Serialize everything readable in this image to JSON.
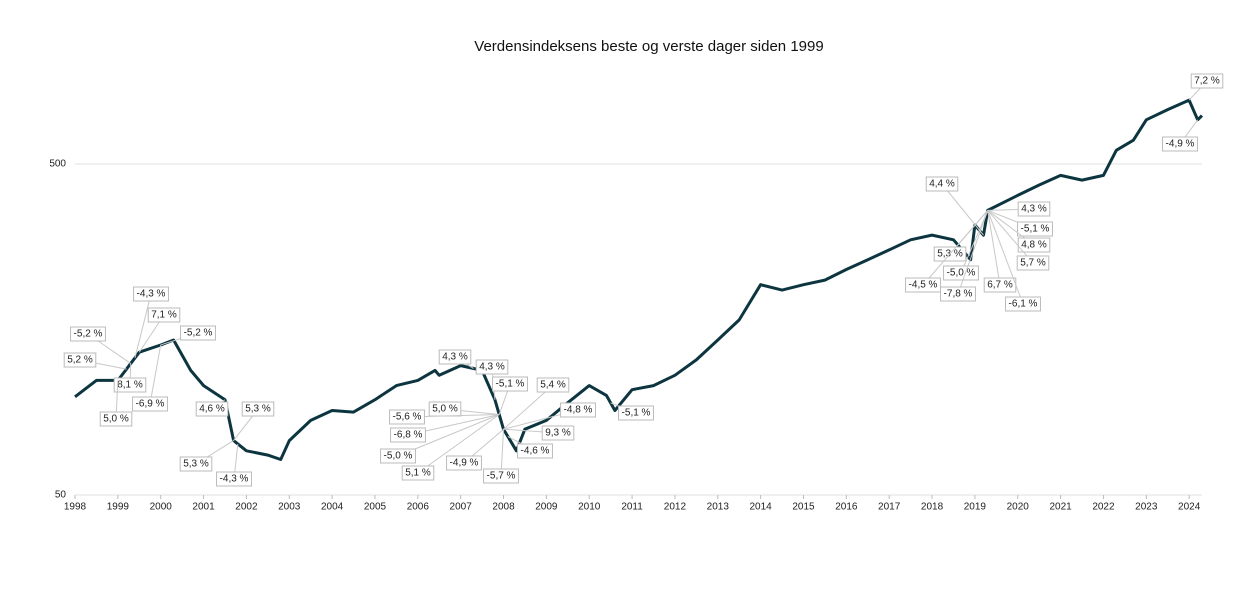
{
  "chart_data": {
    "type": "line",
    "title": "Verdensindeksens beste og verste dager siden 1999",
    "log_scale": true,
    "grid": true,
    "xlim": [
      1998,
      2024.3
    ],
    "xticks": [
      1998,
      1999,
      2000,
      2001,
      2002,
      2003,
      2004,
      2005,
      2006,
      2007,
      2008,
      2009,
      2010,
      2011,
      2012,
      2013,
      2014,
      2015,
      2016,
      2017,
      2018,
      2019,
      2020,
      2021,
      2022,
      2023,
      2024
    ],
    "ylim": [
      50,
      1000
    ],
    "yticks": [
      50,
      500
    ],
    "x": [
      1998,
      1998.5,
      1999,
      1999.5,
      2000,
      2000.3,
      2000.7,
      2001,
      2001.5,
      2001.7,
      2002,
      2002.5,
      2002.8,
      2003,
      2003.5,
      2004,
      2004.5,
      2005,
      2005.5,
      2006,
      2006.4,
      2006.5,
      2007,
      2007.5,
      2007.8,
      2008,
      2008.3,
      2008.5,
      2009,
      2009.5,
      2010,
      2010.4,
      2010.6,
      2011,
      2011.5,
      2012,
      2012.5,
      2013,
      2013.5,
      2014,
      2014.5,
      2015,
      2015.5,
      2016,
      2016.5,
      2017,
      2017.5,
      2018,
      2018.5,
      2018.9,
      2019,
      2019.2,
      2019.3,
      2020,
      2020.5,
      2021,
      2021.5,
      2022,
      2022.3,
      2022.7,
      2023,
      2023.5,
      2024,
      2024.2,
      2024.3
    ],
    "series": [
      {
        "name": "Verdensindeksen",
        "color": "#0d3540",
        "values": [
          99,
          111,
          111,
          135,
          142,
          147,
          119,
          107,
          97,
          73,
          68,
          66,
          64,
          73,
          84,
          90,
          89,
          97,
          107,
          111,
          119,
          115,
          123,
          119,
          97,
          79,
          68,
          79,
          84,
          95,
          107,
          100,
          90,
          104,
          107,
          115,
          128,
          147,
          169,
          216,
          208,
          216,
          223,
          240,
          257,
          275,
          295,
          305,
          295,
          257,
          327,
          305,
          362,
          402,
          432,
          462,
          447,
          462,
          550,
          590,
          680,
          730,
          780,
          680,
          700
        ]
      }
    ],
    "annotations": [
      {
        "text": "-4,3 %",
        "x": 1999.4
      },
      {
        "text": "-5,2 %",
        "x": 1999.3
      },
      {
        "text": "7,1 %",
        "x": 1999.5
      },
      {
        "text": "-5,2 %",
        "x": 2000.0
      },
      {
        "text": "5,2 %",
        "x": 1999.2
      },
      {
        "text": "8,1 %",
        "x": 1999.3
      },
      {
        "text": "-6,9 %",
        "x": 2000.0
      },
      {
        "text": "5,0 %",
        "x": 1999.0
      },
      {
        "text": "4,6 %",
        "x": 2001.5
      },
      {
        "text": "5,3 %",
        "x": 2001.7
      },
      {
        "text": "5,3 %",
        "x": 2001.7
      },
      {
        "text": "-4,3 %",
        "x": 2001.8
      },
      {
        "text": "4,3 %",
        "x": 2007.3
      },
      {
        "text": "4,3 %",
        "x": 2007.8
      },
      {
        "text": "-5,1 %",
        "x": 2007.9
      },
      {
        "text": "5,4 %",
        "x": 2008.0
      },
      {
        "text": "5,0 %",
        "x": 2007.9
      },
      {
        "text": "-4,8 %",
        "x": 2008.0
      },
      {
        "text": "-5,6 %",
        "x": 2007.9
      },
      {
        "text": "-6,8 %",
        "x": 2007.9
      },
      {
        "text": "9,3 %",
        "x": 2008.0
      },
      {
        "text": "-4,6 %",
        "x": 2008.1
      },
      {
        "text": "-5,0 %",
        "x": 2007.9
      },
      {
        "text": "-4,9 %",
        "x": 2008.0
      },
      {
        "text": "5,1 %",
        "x": 2007.9
      },
      {
        "text": "-5,7 %",
        "x": 2008.0
      },
      {
        "text": "-5,1 %",
        "x": 2010.5
      },
      {
        "text": "4,4 %",
        "x": 2019.2
      },
      {
        "text": "4,3 %",
        "x": 2019.3
      },
      {
        "text": "-5,1 %",
        "x": 2019.3
      },
      {
        "text": "4,8 %",
        "x": 2019.3
      },
      {
        "text": "5,3 %",
        "x": 2019.3
      },
      {
        "text": "5,7 %",
        "x": 2019.3
      },
      {
        "text": "-5,0 %",
        "x": 2019.3
      },
      {
        "text": "-4,5 %",
        "x": 2019.3
      },
      {
        "text": "6,7 %",
        "x": 2019.3
      },
      {
        "text": "-7,8 %",
        "x": 2019.3
      },
      {
        "text": "-6,1 %",
        "x": 2019.3
      },
      {
        "text": "7,2 %",
        "x": 2024.0
      },
      {
        "text": "-4,9 %",
        "x": 2024.2
      }
    ]
  }
}
